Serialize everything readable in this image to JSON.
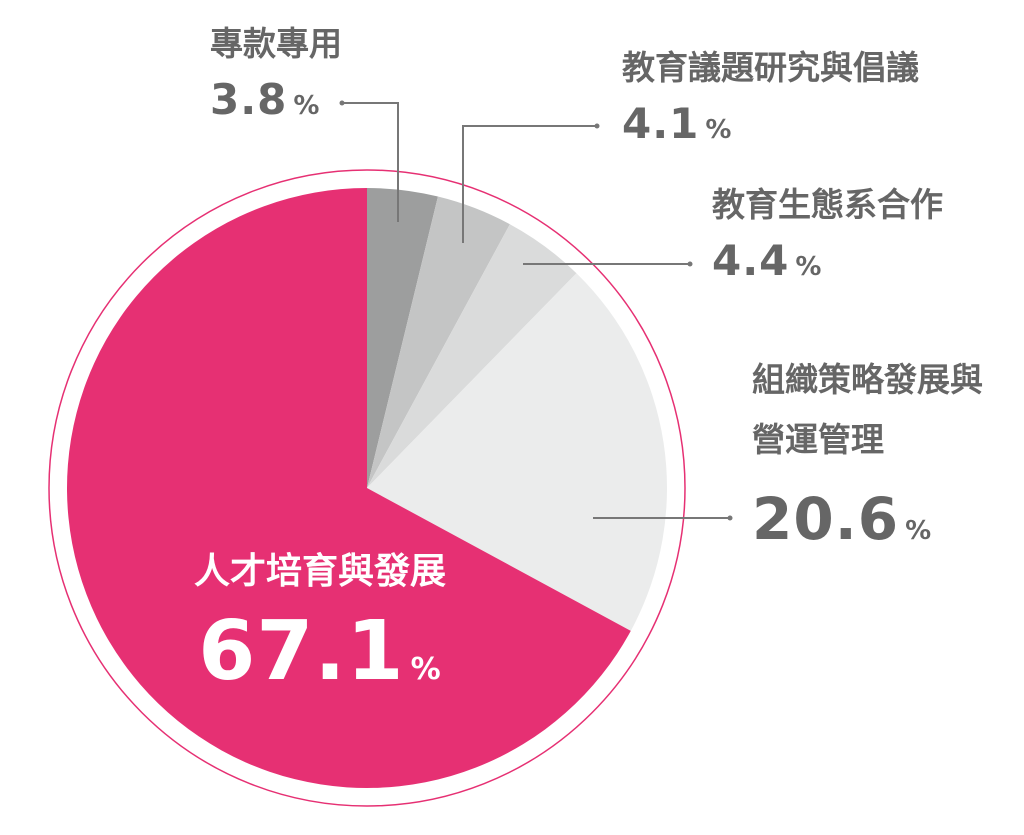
{
  "chart_data": {
    "type": "pie",
    "categories": [
      "專款專用",
      "教育議題研究與倡議",
      "教育生態系合作",
      "組織策略發展與營運管理",
      "人才培育與發展"
    ],
    "values": [
      3.8,
      4.1,
      4.4,
      20.6,
      67.1
    ],
    "colors": [
      "#9d9e9e",
      "#c4c5c5",
      "#dadbdb",
      "#ebecec",
      "#e63073"
    ],
    "unit": "%",
    "start_angle": "top",
    "direction": "clockwise"
  }
}
